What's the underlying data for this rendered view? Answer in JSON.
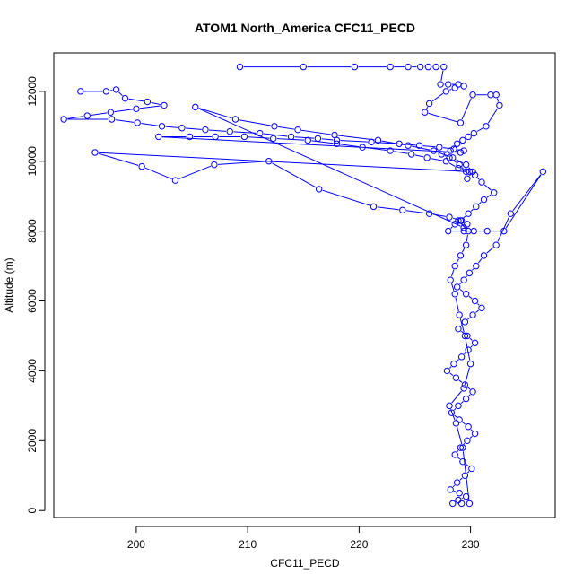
{
  "chart_data": {
    "type": "scatter",
    "title": "ATOM1 North_America CFC11_PECD",
    "xlabel": "CFC11_PECD",
    "ylabel": "Altitude (m)",
    "xlim": [
      192.6,
      237.6
    ],
    "ylim": [
      -200,
      13100
    ],
    "xticks": [
      200,
      210,
      220,
      230
    ],
    "yticks": [
      0,
      2000,
      4000,
      6000,
      8000,
      10000,
      12000
    ],
    "grid": false,
    "legend": "none",
    "marker": "open-circle",
    "connect_points": true,
    "color": "#0000ff",
    "series": [
      {
        "x": [
          209.3,
          215.0,
          219.6,
          222.8,
          224.4,
          225.5,
          226.2,
          226.9,
          227.6,
          227.3,
          228.0,
          228.9,
          229.4,
          228.6,
          227.8,
          226.3,
          225.9,
          229.1,
          230.2,
          231.8,
          232.3,
          232.6,
          231.4,
          230.3,
          229.8,
          229.3,
          228.8,
          228.2,
          227.4,
          228.1,
          229.0,
          229.6,
          230.4,
          231.0,
          232.1,
          231.2,
          230.5,
          229.8,
          229.1,
          228.6,
          228.0,
          229.4,
          230.3,
          231.5,
          233.0,
          236.5,
          233.6,
          232.3,
          231.2,
          230.5,
          229.9,
          229.4,
          228.8,
          229.6,
          230.4,
          231.0,
          230.2,
          229.5,
          228.9,
          229.7,
          230.4,
          229.8,
          229.2,
          228.5,
          227.9,
          228.7,
          229.5,
          230.2,
          229.6,
          228.9,
          228.3,
          229.0,
          229.8,
          230.4,
          229.7,
          229.1,
          228.6,
          229.3,
          230.1,
          229.5,
          228.8,
          228.2,
          229.0,
          229.6,
          228.9,
          228.4,
          229.2,
          229.9,
          229.3,
          228.7,
          228.1,
          229.4,
          230.0,
          229.5,
          229.0,
          228.6,
          228.2,
          228.6,
          229.1,
          229.6,
          229.8,
          228.9
        ],
        "y": [
          12700,
          12700,
          12700,
          12700,
          12700,
          12700,
          12700,
          12700,
          12700,
          12200,
          12200,
          12200,
          12150,
          12100,
          12000,
          11650,
          11400,
          11100,
          11900,
          11900,
          11900,
          11600,
          11000,
          10800,
          10700,
          10600,
          10500,
          10300,
          10200,
          10100,
          9900,
          9700,
          9600,
          9400,
          9100,
          8900,
          8700,
          8500,
          8300,
          8200,
          8000,
          8000,
          8000,
          8000,
          8000,
          9700,
          8500,
          7600,
          7300,
          7000,
          6800,
          6600,
          6400,
          6200,
          6000,
          5800,
          5600,
          5400,
          5200,
          5000,
          4800,
          4600,
          4400,
          4200,
          4000,
          3800,
          3600,
          3400,
          3200,
          3000,
          2800,
          2600,
          2400,
          2200,
          2000,
          1800,
          1600,
          1400,
          1200,
          1000,
          800,
          600,
          500,
          400,
          300,
          200,
          200,
          200,
          1800,
          2500,
          3000,
          3500,
          4200,
          5000,
          5600,
          6200,
          6600,
          7000,
          7300,
          7600,
          8000,
          8300
        ]
      },
      {
        "x": [
          195.0,
          197.3,
          198.2,
          199.0,
          201.0,
          202.5,
          200.0,
          197.7,
          195.6,
          193.5,
          197.8,
          200.1,
          202.3,
          204.1,
          206.2,
          208.4,
          211.1,
          213.9,
          216.3,
          218.0,
          221.1,
          223.6,
          225.4,
          227.2,
          228.5,
          229.4,
          229.1,
          202.0,
          204.8,
          207.1,
          209.7,
          212.3,
          215.4,
          218.0,
          220.3,
          222.8,
          224.7,
          226.1,
          227.8,
          228.9,
          229.9,
          196.3,
          200.5,
          203.5,
          207.0,
          211.9,
          216.4,
          221.3,
          223.9,
          226.3,
          228.1,
          229.2,
          229.7,
          229.4,
          205.3,
          208.9,
          212.4,
          214.5,
          217.8,
          221.7,
          224.4,
          226.7,
          228.4,
          229.6,
          230.2,
          229.7
        ],
        "y": [
          12000,
          12000,
          12050,
          11800,
          11700,
          11600,
          11500,
          11400,
          11300,
          11200,
          11200,
          11100,
          11000,
          10950,
          10900,
          10850,
          10800,
          10700,
          10650,
          10600,
          10550,
          10500,
          10450,
          10400,
          10350,
          10300,
          10250,
          10700,
          10700,
          10700,
          10700,
          10650,
          10600,
          10500,
          10400,
          10300,
          10200,
          10100,
          10000,
          9800,
          9700,
          10250,
          9850,
          9450,
          9900,
          10000,
          9200,
          8700,
          8600,
          8500,
          8400,
          8300,
          8200,
          8100,
          11550,
          11200,
          11000,
          10900,
          10750,
          10600,
          10450,
          10300,
          10100,
          9900,
          9700,
          9500
        ]
      }
    ]
  }
}
